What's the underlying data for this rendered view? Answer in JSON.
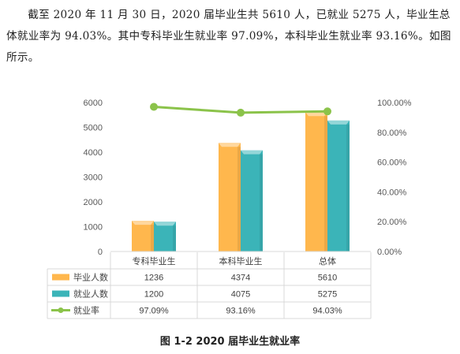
{
  "paragraph": "截至 2020 年 11 月 30 日，2020 届毕业生共 5610 人，已就业 5275 人，毕业生总体就业率为 94.03%。其中专科毕业生就业率 97.09%，本科毕业生就业率 93.16%。如图所示。",
  "caption": "图 1-2 2020 届毕业生就业率",
  "chart_data": {
    "type": "bar",
    "categories": [
      "专科毕业生",
      "本科毕业生",
      "总体"
    ],
    "series": [
      {
        "name": "毕业人数",
        "values": [
          1236,
          4374,
          5610
        ],
        "color": "#FFB74D",
        "kind": "bar",
        "axis": "left",
        "labels": [
          "1236",
          "4374",
          "5610"
        ]
      },
      {
        "name": "就业人数",
        "values": [
          1200,
          4075,
          5275
        ],
        "color": "#3BB4B8",
        "kind": "bar",
        "axis": "left",
        "labels": [
          "1200",
          "4075",
          "5275"
        ]
      },
      {
        "name": "就业率",
        "values": [
          97.09,
          93.16,
          94.03
        ],
        "color": "#8BC34A",
        "kind": "line",
        "axis": "right",
        "labels": [
          "97.09%",
          "93.16%",
          "94.03%"
        ]
      }
    ],
    "y_left": {
      "min": 0,
      "max": 6000,
      "ticks": [
        "0",
        "1000",
        "2000",
        "3000",
        "4000",
        "5000",
        "6000"
      ]
    },
    "y_right": {
      "min": 0,
      "max": 100,
      "ticks": [
        "0.00%",
        "20.00%",
        "40.00%",
        "60.00%",
        "80.00%",
        "100.00%"
      ]
    },
    "grid": false,
    "legend": "data-table"
  }
}
